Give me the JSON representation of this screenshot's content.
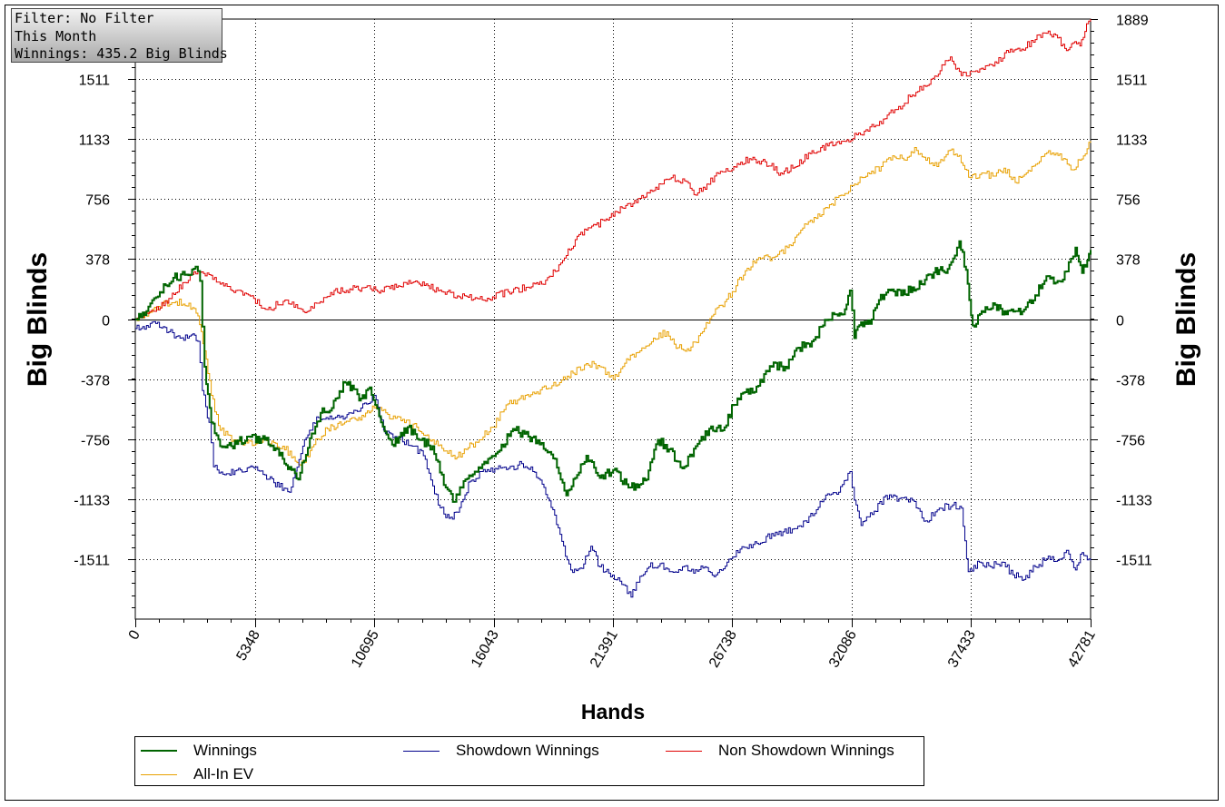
{
  "info": {
    "filter": "Filter: No Filter",
    "period": "This Month",
    "winnings": "Winnings: 435.2 Big Blinds"
  },
  "chart_data": {
    "type": "line",
    "title": "",
    "xlabel": "Hands",
    "ylabel": "Big Blinds",
    "xlim": [
      0,
      42781
    ],
    "ylim": [
      -1889,
      1889
    ],
    "x_ticks": [
      0,
      5348,
      10695,
      16043,
      21391,
      26738,
      32086,
      37433,
      42781
    ],
    "y_ticks": [
      1889,
      1511,
      1133,
      756,
      378,
      0,
      -378,
      -756,
      -1133,
      -1511
    ],
    "grid": true,
    "legend_position": "bottom",
    "series": [
      {
        "name": "Winnings",
        "color": "#006400",
        "stroke": 2,
        "x": [
          0,
          500,
          1100,
          1700,
          2300,
          2700,
          2900,
          3100,
          3400,
          3800,
          4300,
          5000,
          5800,
          6600,
          7300,
          7900,
          8300,
          8800,
          9400,
          10100,
          10500,
          11000,
          11500,
          12200,
          12700,
          13300,
          13900,
          14300,
          14700,
          15200,
          15800,
          16400,
          17000,
          17600,
          18200,
          18800,
          19300,
          19700,
          20200,
          20800,
          21400,
          22000,
          22500,
          22900,
          23400,
          23900,
          24500,
          25100,
          25700,
          26300,
          26800,
          27300,
          27900,
          28500,
          29100,
          29700,
          30300,
          30800,
          31300,
          31700,
          32000,
          32200,
          32500,
          32900,
          33300,
          33800,
          34300,
          34800,
          35200,
          35600,
          36000,
          36300,
          36700,
          36900,
          37200,
          37500,
          37900,
          38500,
          39000,
          39400,
          39800,
          40300,
          40800,
          41300,
          41700,
          41900,
          42100,
          42400,
          42781
        ],
        "y": [
          0,
          50,
          170,
          260,
          280,
          330,
          240,
          -300,
          -650,
          -800,
          -800,
          -740,
          -760,
          -880,
          -1010,
          -720,
          -590,
          -560,
          -400,
          -500,
          -430,
          -650,
          -790,
          -680,
          -760,
          -800,
          -1060,
          -1150,
          -1020,
          -960,
          -880,
          -790,
          -700,
          -740,
          -780,
          -880,
          -1110,
          -1000,
          -860,
          -1000,
          -950,
          -1040,
          -1060,
          -1010,
          -760,
          -820,
          -940,
          -800,
          -690,
          -700,
          -540,
          -460,
          -420,
          -300,
          -300,
          -180,
          -140,
          -40,
          30,
          30,
          180,
          -120,
          -20,
          -30,
          120,
          180,
          150,
          200,
          220,
          280,
          310,
          290,
          400,
          490,
          310,
          -40,
          50,
          90,
          30,
          50,
          60,
          150,
          270,
          240,
          300,
          380,
          450,
          290,
          435
        ]
      },
      {
        "name": "Showdown Winnings",
        "color": "#00008b",
        "stroke": 1,
        "x": [
          0,
          500,
          1000,
          1500,
          2000,
          2500,
          2800,
          3000,
          3300,
          3500,
          4000,
          4700,
          5400,
          6200,
          6900,
          7500,
          7800,
          8200,
          8800,
          9400,
          10100,
          10700,
          11200,
          11800,
          12400,
          12900,
          13400,
          13900,
          14200,
          14600,
          15000,
          15500,
          16100,
          16700,
          17300,
          17800,
          18300,
          18700,
          19100,
          19500,
          20000,
          20400,
          20800,
          21200,
          21700,
          22200,
          22600,
          23000,
          23500,
          24000,
          24500,
          25000,
          25500,
          26000,
          26500,
          27000,
          27500,
          28000,
          28500,
          29000,
          29500,
          30000,
          30500,
          31000,
          31500,
          32000,
          32200,
          32500,
          33000,
          33600,
          34200,
          34800,
          35400,
          36000,
          36600,
          37000,
          37300,
          37800,
          38300,
          38800,
          39300,
          39800,
          40300,
          40800,
          41300,
          41600,
          41800,
          42100,
          42400,
          42781
        ],
        "y": [
          -60,
          -40,
          -20,
          -80,
          -120,
          -100,
          -140,
          -450,
          -650,
          -930,
          -980,
          -950,
          -930,
          -1030,
          -1090,
          -800,
          -700,
          -620,
          -630,
          -620,
          -560,
          -480,
          -720,
          -750,
          -800,
          -860,
          -1100,
          -1250,
          -1260,
          -1150,
          -1020,
          -960,
          -940,
          -940,
          -910,
          -960,
          -1060,
          -1200,
          -1400,
          -1580,
          -1570,
          -1430,
          -1560,
          -1600,
          -1650,
          -1750,
          -1620,
          -1560,
          -1540,
          -1590,
          -1560,
          -1600,
          -1560,
          -1610,
          -1530,
          -1470,
          -1420,
          -1410,
          -1350,
          -1340,
          -1320,
          -1270,
          -1200,
          -1100,
          -1090,
          -960,
          -1140,
          -1300,
          -1230,
          -1110,
          -1130,
          -1140,
          -1270,
          -1190,
          -1170,
          -1190,
          -1590,
          -1530,
          -1560,
          -1530,
          -1610,
          -1640,
          -1560,
          -1510,
          -1520,
          -1470,
          -1480,
          -1580,
          -1470,
          -1520
        ]
      },
      {
        "name": "Non Showdown Winnings",
        "color": "#e00000",
        "stroke": 1,
        "x": [
          0,
          800,
          1500,
          2200,
          2800,
          3300,
          3800,
          4500,
          5300,
          5900,
          6700,
          7600,
          8200,
          8900,
          9600,
          10300,
          11000,
          11700,
          12400,
          13100,
          13800,
          14500,
          15300,
          16000,
          16700,
          17500,
          18200,
          18800,
          19300,
          19700,
          20200,
          21000,
          21800,
          22600,
          23300,
          24000,
          24600,
          25100,
          25600,
          26200,
          26800,
          27500,
          28200,
          28900,
          29600,
          30300,
          31000,
          31700,
          32300,
          32900,
          33500,
          34100,
          34700,
          35300,
          35800,
          36200,
          36500,
          36900,
          37300,
          37900,
          38500,
          39100,
          39700,
          40300,
          40800,
          41300,
          41700,
          42000,
          42300,
          42600,
          42781
        ],
        "y": [
          0,
          50,
          130,
          230,
          300,
          280,
          220,
          180,
          130,
          60,
          120,
          40,
          100,
          180,
          190,
          200,
          180,
          200,
          230,
          210,
          170,
          140,
          130,
          140,
          170,
          200,
          220,
          300,
          400,
          500,
          560,
          620,
          700,
          760,
          830,
          890,
          870,
          780,
          850,
          930,
          960,
          1010,
          990,
          920,
          960,
          1060,
          1090,
          1120,
          1160,
          1210,
          1260,
          1320,
          1400,
          1470,
          1530,
          1600,
          1650,
          1560,
          1530,
          1580,
          1620,
          1680,
          1700,
          1760,
          1800,
          1770,
          1690,
          1740,
          1720,
          1860,
          1889
        ]
      },
      {
        "name": "All-In EV",
        "color": "#e8a000",
        "stroke": 1,
        "x": [
          0,
          600,
          1200,
          1800,
          2400,
          2800,
          3100,
          3400,
          3800,
          4400,
          5000,
          5800,
          6600,
          7400,
          8000,
          8600,
          9300,
          10000,
          10700,
          11300,
          11900,
          12600,
          13300,
          13900,
          14400,
          14900,
          15400,
          16000,
          16600,
          17200,
          17800,
          18400,
          19000,
          19600,
          20200,
          20800,
          21400,
          22000,
          22600,
          23200,
          23800,
          24300,
          24800,
          25400,
          25900,
          26400,
          26900,
          27400,
          28000,
          28600,
          29200,
          29800,
          30400,
          31000,
          31600,
          32200,
          32800,
          33400,
          34000,
          34500,
          34900,
          35400,
          35900,
          36400,
          36900,
          37400,
          37900,
          38400,
          38900,
          39400,
          39900,
          40400,
          40900,
          41400,
          41900,
          42300,
          42781
        ],
        "y": [
          0,
          40,
          100,
          110,
          100,
          20,
          -200,
          -480,
          -700,
          -760,
          -780,
          -760,
          -800,
          -920,
          -790,
          -690,
          -660,
          -620,
          -560,
          -600,
          -640,
          -680,
          -760,
          -830,
          -870,
          -810,
          -760,
          -680,
          -540,
          -500,
          -460,
          -440,
          -400,
          -340,
          -280,
          -300,
          -380,
          -250,
          -200,
          -120,
          -80,
          -180,
          -200,
          -80,
          30,
          110,
          210,
          320,
          380,
          390,
          450,
          560,
          640,
          700,
          780,
          850,
          920,
          960,
          1020,
          1000,
          1080,
          1000,
          960,
          1060,
          1030,
          890,
          920,
          900,
          950,
          860,
          920,
          980,
          1060,
          1040,
          940,
          1000,
          1120
        ]
      }
    ]
  }
}
